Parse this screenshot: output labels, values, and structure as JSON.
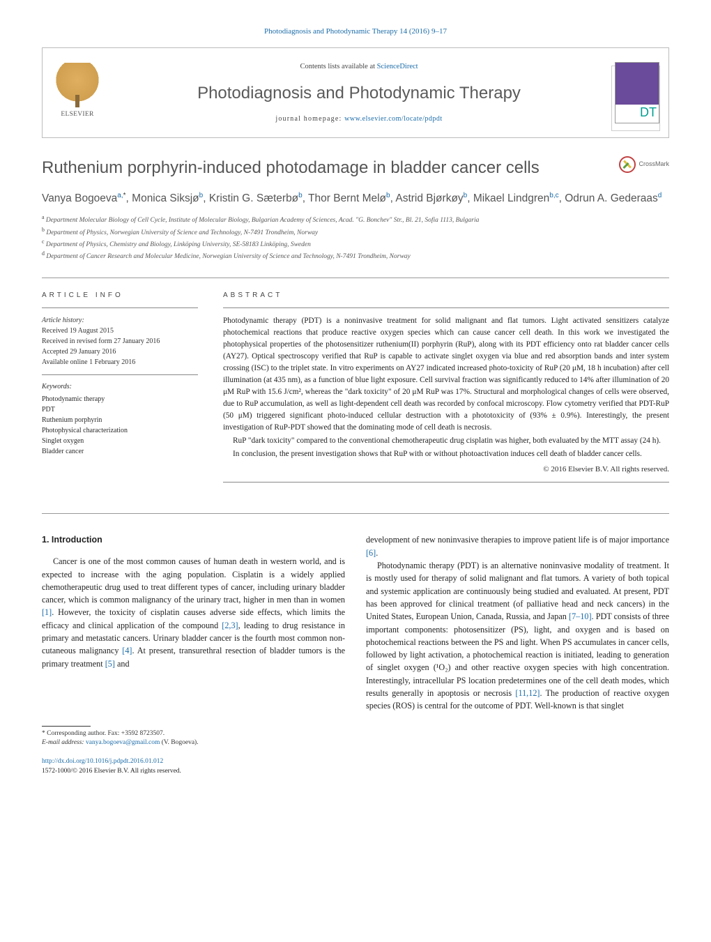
{
  "journal_ref": "Photodiagnosis and Photodynamic Therapy 14 (2016) 9–17",
  "header": {
    "publisher": "ELSEVIER",
    "contents_prefix": "Contents lists available at ",
    "contents_link": "ScienceDirect",
    "journal_name": "Photodiagnosis and Photodynamic Therapy",
    "homepage_prefix": "journal homepage: ",
    "homepage_link": "www.elsevier.com/locate/pdpdt",
    "cover_letters": "DT"
  },
  "crossmark_label": "CrossMark",
  "title": "Ruthenium porphyrin-induced photodamage in bladder cancer cells",
  "authors_html": "Vanya Bogoeva<sup>a,</sup><sup class='ast'>*</sup>, Monica Siksjø<sup>b</sup>, Kristin G. Sæterbø<sup>b</sup>, Thor Bernt Melø<sup>b</sup>, Astrid Bjørkøy<sup>b</sup>, Mikael Lindgren<sup>b,c</sup>, Odrun A. Gederaas<sup>d</sup>",
  "affiliations": [
    {
      "key": "a",
      "text": "Department Molecular Biology of Cell Cycle, Institute of Molecular Biology, Bulgarian Academy of Sciences, Acad. \"G. Bonchev\" Str., Bl. 21, Sofia 1113, Bulgaria"
    },
    {
      "key": "b",
      "text": "Department of Physics, Norwegian University of Science and Technology, N-7491 Trondheim, Norway"
    },
    {
      "key": "c",
      "text": "Department of Physics, Chemistry and Biology, Linköping University, SE-58183 Linköping, Sweden"
    },
    {
      "key": "d",
      "text": "Department of Cancer Research and Molecular Medicine, Norwegian University of Science and Technology, N-7491 Trondheim, Norway"
    }
  ],
  "info_head": "article info",
  "abstract_head": "abstract",
  "history": {
    "label": "Article history:",
    "lines": [
      "Received 19 August 2015",
      "Received in revised form 27 January 2016",
      "Accepted 29 January 2016",
      "Available online 1 February 2016"
    ]
  },
  "keywords": {
    "label": "Keywords:",
    "items": [
      "Photodynamic therapy",
      "PDT",
      "Ruthenium porphyrin",
      "Photophysical characterization",
      "Singlet oxygen",
      "Bladder cancer"
    ]
  },
  "abstract_paragraphs": [
    "Photodynamic therapy (PDT) is a noninvasive treatment for solid malignant and flat tumors. Light activated sensitizers catalyze photochemical reactions that produce reactive oxygen species which can cause cancer cell death. In this work we investigated the photophysical properties of the photosensitizer ruthenium(II) porphyrin (RuP), along with its PDT efficiency onto rat bladder cancer cells (AY27). Optical spectroscopy verified that RuP is capable to activate singlet oxygen via blue and red absorption bands and inter system crossing (ISC) to the triplet state. In vitro experiments on AY27 indicated increased photo-toxicity of RuP (20 μM, 18 h incubation) after cell illumination (at 435 nm), as a function of blue light exposure. Cell survival fraction was significantly reduced to 14% after illumination of 20 μM RuP with 15.6 J/cm², whereas the \"dark toxicity\" of 20 μM RuP was 17%. Structural and morphological changes of cells were observed, due to RuP accumulation, as well as light-dependent cell death was recorded by confocal microscopy. Flow cytometry verified that PDT-RuP (50 μM) triggered significant photo-induced cellular destruction with a phototoxicity of (93% ± 0.9%). Interestingly, the present investigation of RuP-PDT showed that the dominating mode of cell death is necrosis.",
    "RuP \"dark toxicity\" compared to the conventional chemotherapeutic drug cisplatin was higher, both evaluated by the MTT assay (24 h).",
    "In conclusion, the present investigation shows that RuP with or without photoactivation induces cell death of bladder cancer cells."
  ],
  "copyright": "© 2016 Elsevier B.V. All rights reserved.",
  "intro_head": "1. Introduction",
  "intro_p1_html": "Cancer is one of the most common causes of human death in western world, and is expected to increase with the aging population. Cisplatin is a widely applied chemotherapeutic drug used to treat different types of cancer, including urinary bladder cancer, which is common malignancy of the urinary tract, higher in men than in women <span class='ref'>[1]</span>. However, the toxicity of cisplatin causes adverse side effects, which limits the efficacy and clinical application of the compound <span class='ref'>[2,3]</span>, leading to drug resistance in primary and metastatic cancers. Urinary bladder cancer is the fourth most common non-cutaneous malignancy <span class='ref'>[4]</span>. At present, transurethral resection of bladder tumors is the primary treatment <span class='ref'>[5]</span> and",
  "intro_p2_html": "development of new noninvasive therapies to improve patient life is of major importance <span class='ref'>[6]</span>.",
  "intro_p3_html": "Photodynamic therapy (PDT) is an alternative noninvasive modality of treatment. It is mostly used for therapy of solid malignant and flat tumors. A variety of both topical and systemic application are continuously being studied and evaluated. At present, PDT has been approved for clinical treatment (of palliative head and neck cancers) in the United States, European Union, Canada, Russia, and Japan <span class='ref'>[7–10]</span>. PDT consists of three important components: photosensitizer (PS), light, and oxygen and is based on photochemical reactions between the PS and light. When PS accumulates in cancer cells, followed by light activation, a photochemical reaction is initiated, leading to generation of singlet oxygen (¹O₂) and other reactive oxygen species with high concentration. Interestingly, intracellular PS location predetermines one of the cell death modes, which results generally in apoptosis or necrosis <span class='ref'>[11,12]</span>. The production of reactive oxygen species (ROS) is central for the outcome of PDT. Well-known is that singlet",
  "footnotes": {
    "corresponding": "* Corresponding author. Fax: +3592 8723507.",
    "email_label": "E-mail address: ",
    "email": "vanya.bogoeva@gmail.com",
    "email_who": " (V. Bogoeva)."
  },
  "doi": {
    "url": "http://dx.doi.org/10.1016/j.pdpdt.2016.01.012",
    "issn_line": "1572-1000/© 2016 Elsevier B.V. All rights reserved."
  },
  "colors": {
    "link": "#1a6ba8",
    "text": "#2a2a2a",
    "gray_title": "#555555"
  }
}
